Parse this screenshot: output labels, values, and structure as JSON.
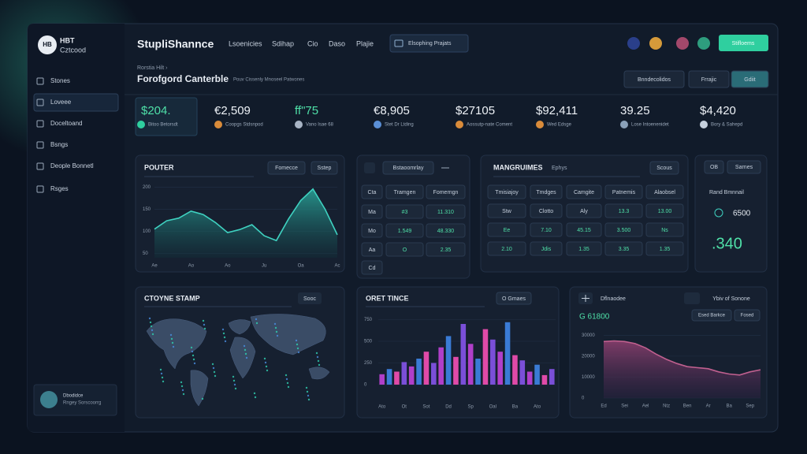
{
  "sidebar": {
    "brand": [
      "HBT",
      "Cztcood"
    ],
    "logo": "HB",
    "items": [
      "Stones",
      "Loveee",
      "Doceltoand",
      "Bsngs",
      "Deople Bonnetl",
      "Rsges"
    ],
    "active": 1,
    "footer": [
      "Dbodidce",
      "Rngey Sorscoorrg"
    ]
  },
  "header": {
    "title": "StupliShannce",
    "nav": [
      "Lsoenicies",
      "Sdihap",
      "Cio",
      "Daso",
      "Plajie"
    ],
    "search": "Elsophing Prajats",
    "button": "Stifloems"
  },
  "subheader": {
    "crumb": "Rorstia Hilt  ›",
    "title": "Forofgord Canterble",
    "subtitle": "Pouv Cissenly Mnoseel Patwones",
    "actions": [
      "Bnndecolidos",
      "Frrajic",
      "Gdiit"
    ]
  },
  "stats": [
    {
      "value": "$204.",
      "label": "Bitoo Betorsdt"
    },
    {
      "value": "€2,509",
      "label": "Coopgs Stdsnpod"
    },
    {
      "value": "ff\"75",
      "label": "Vano Isae 68"
    },
    {
      "value": "€8,905",
      "label": "Stet Dr Ltding"
    },
    {
      "value": "$27105",
      "label": "Aossutp-nate Coment"
    },
    {
      "value": "$92,411",
      "label": "Wed Edsge"
    },
    {
      "value": "39.25",
      "label": "Lose Intoenenidet"
    },
    {
      "value": "$4,420",
      "label": "Bory & Sahepd"
    }
  ],
  "router": {
    "title": "POUTER",
    "buttons": [
      "Fomecce",
      "Sstep"
    ],
    "chart": {
      "type": "area",
      "categories": [
        "Ae",
        null,
        null,
        "Ao",
        null,
        null,
        "Ao",
        null,
        null,
        "Ju",
        null,
        null,
        "Oa",
        null,
        null,
        "Ac"
      ],
      "values": [
        105,
        124,
        130,
        146,
        138,
        120,
        97,
        104,
        115,
        90,
        79,
        128,
        170,
        196,
        150,
        92
      ],
      "color": "#3fd1c0",
      "ylim": [
        40,
        210
      ],
      "yticks": [
        50,
        100,
        150,
        200
      ]
    }
  },
  "table_panel": {
    "title": "Bstaoomrlay",
    "rows": [
      [
        "Cta",
        "Tramgen",
        "Fomerngn"
      ],
      [
        "Ma",
        "#3",
        "11.310"
      ],
      [
        "Mo",
        "1.549",
        "48.330"
      ],
      [
        "Aa",
        "O",
        "2.35"
      ],
      [
        "Cd"
      ]
    ]
  },
  "markets": {
    "title": "MANGRUIMES",
    "tag": "Ephys",
    "button": "Scous",
    "header": [
      "Tmisiajoy",
      "Tmdges",
      "Camgite",
      "Patnemis",
      "Alaobsel"
    ],
    "rows": [
      [
        "Stw",
        "Clotto",
        "Aly",
        "13.3",
        "13.00"
      ],
      [
        "Ee",
        "7.10",
        "45.15",
        "3.500",
        "Ns"
      ],
      [
        "2.10",
        "Jdis",
        "1.35",
        "3.35",
        "1.35"
      ]
    ]
  },
  "side_panel": {
    "tag": "OB",
    "button": "Sarnes",
    "label": "Rand Bmnnail",
    "metric": "6500",
    "big": ".340"
  },
  "map_panel": {
    "title": "CTOYNE STAMP",
    "button": "Sooc"
  },
  "bars_panel": {
    "title": "ORET TINCE",
    "button": "O Gmaes",
    "chart": {
      "type": "bar",
      "categories": [
        "Ato",
        null,
        null,
        "Ot",
        null,
        null,
        "Sot",
        null,
        null,
        "Dd",
        null,
        null,
        "Sp",
        null,
        null,
        "Oal",
        null,
        null,
        "Ba",
        null,
        null,
        "Ato",
        null,
        null
      ],
      "values": [
        120,
        180,
        150,
        260,
        210,
        300,
        380,
        250,
        430,
        560,
        320,
        700,
        470,
        300,
        640,
        520,
        380,
        720,
        340,
        280,
        150,
        230,
        110,
        180
      ],
      "colors": [
        "#b03fc9",
        "#3a7bd5",
        "#e04aa8",
        "#7a4fd8"
      ],
      "ylim": [
        0,
        800
      ],
      "yticks": [
        0,
        250,
        500,
        750
      ]
    }
  },
  "trend_panel": {
    "title": "Dflnaodee",
    "button": "Ybiv of Sonone",
    "tags": [
      "Esed Barkce",
      "Fosed"
    ],
    "metric": "G 61800",
    "chart": {
      "type": "area",
      "categories": [
        "Ed",
        null,
        "Sei",
        null,
        "Ael",
        null,
        "Ntz",
        null,
        "Ben",
        null,
        "Ar",
        null,
        "Ba",
        null,
        "Sep",
        null
      ],
      "values": [
        27000,
        27300,
        27000,
        26000,
        24000,
        21000,
        18500,
        16500,
        15000,
        14500,
        14000,
        12500,
        11500,
        11000,
        12500,
        13500
      ],
      "color": "#c0608f",
      "ylim": [
        0,
        32000
      ],
      "yticks": [
        0,
        10000,
        20000,
        30000
      ]
    }
  }
}
